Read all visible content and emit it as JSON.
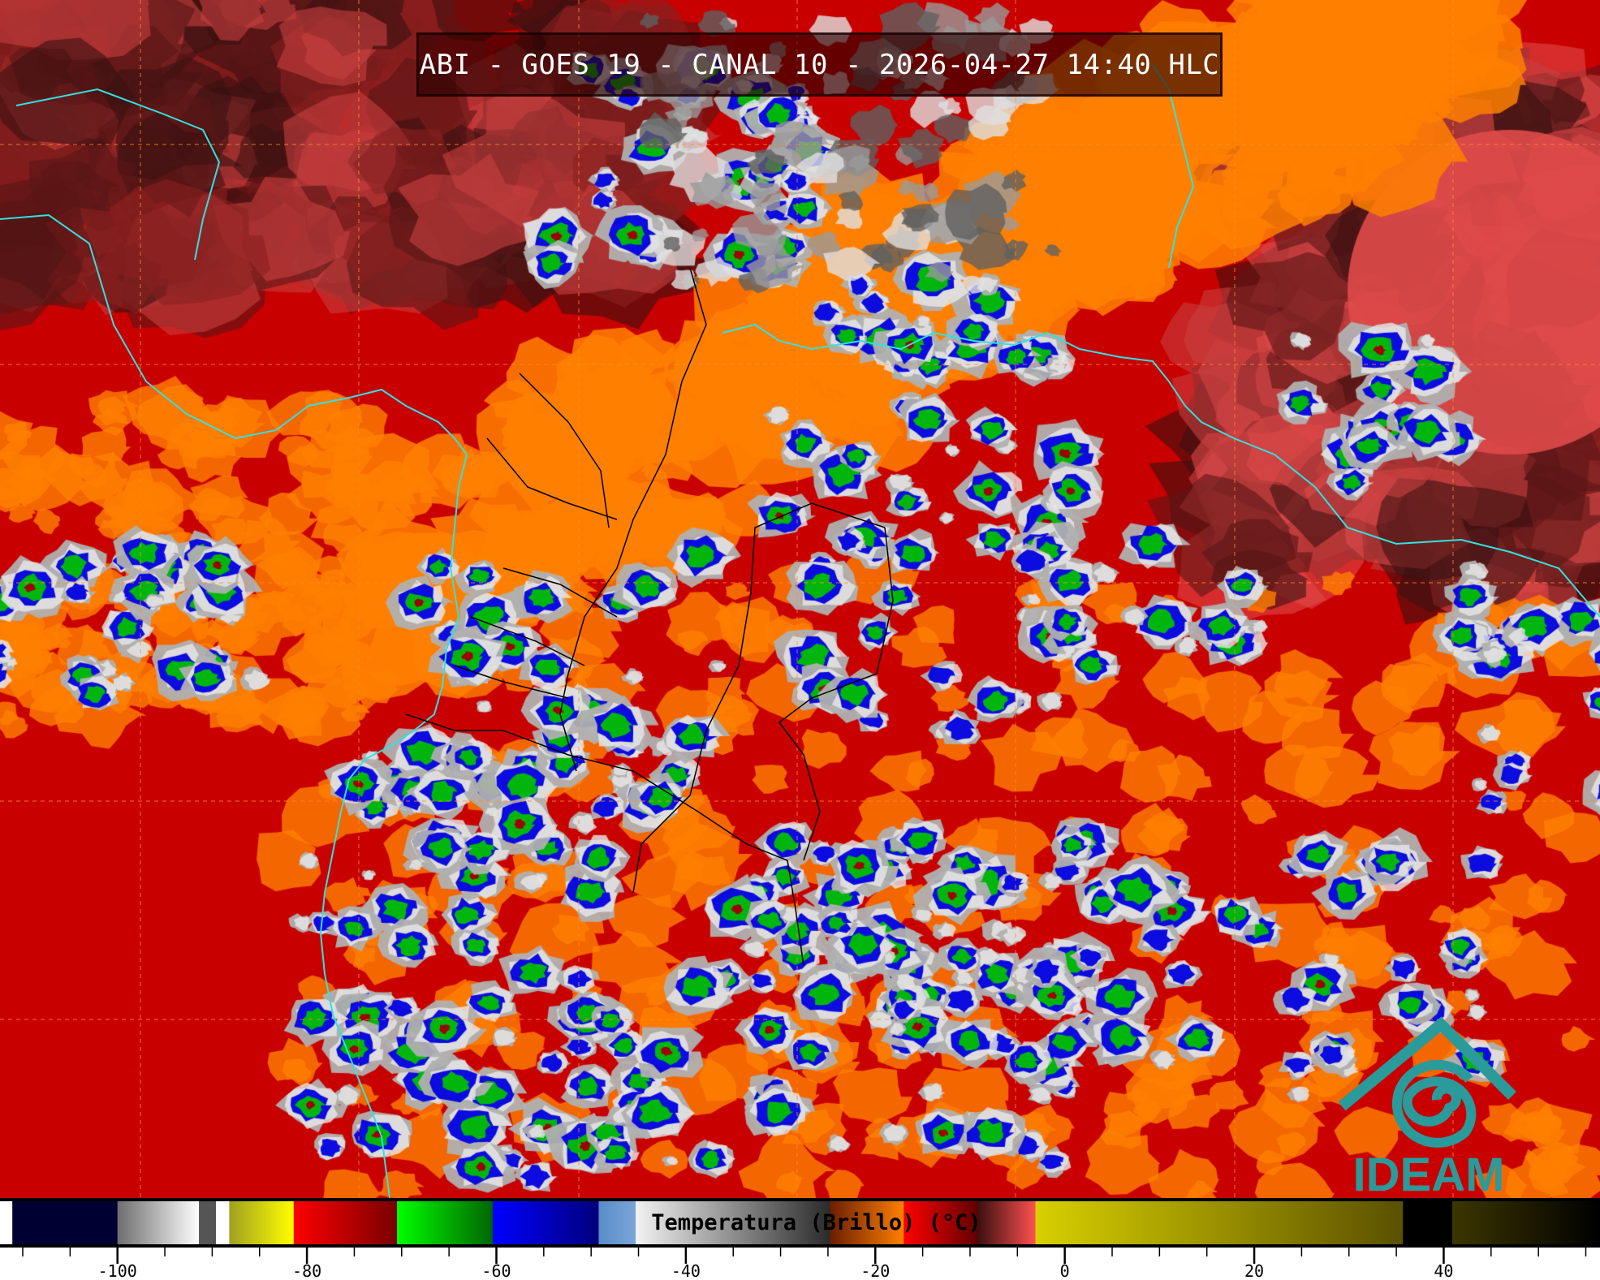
{
  "title": "ABI - GOES 19 - CANAL 10 - 2026-04-27 14:40 HLC",
  "logo_text": "IDEAM",
  "colorbar": {
    "label": "Temperatura (Brillo) (°C)",
    "range": [
      -112.4,
      56.5
    ],
    "ticks": [
      {
        "value": -100,
        "label": "-100"
      },
      {
        "value": -80,
        "label": "-80"
      },
      {
        "value": -60,
        "label": "-60"
      },
      {
        "value": -40,
        "label": "-40"
      },
      {
        "value": -20,
        "label": "-20"
      },
      {
        "value": 0,
        "label": "0"
      },
      {
        "value": 20,
        "label": "20"
      },
      {
        "value": 40,
        "label": "40"
      }
    ],
    "minor_tick_step": 5,
    "segments": [
      {
        "from": -112.4,
        "to": -111.1,
        "colors": [
          "#ffffff",
          "#ffffff"
        ]
      },
      {
        "from": -111.1,
        "to": -100,
        "colors": [
          "#000033",
          "#000033"
        ]
      },
      {
        "from": -100,
        "to": -91.4,
        "colors": [
          "#6e6e6e",
          "#ffffff"
        ]
      },
      {
        "from": -91.4,
        "to": -89.6,
        "colors": [
          "#555555",
          "#555555"
        ]
      },
      {
        "from": -89.6,
        "to": -88.2,
        "colors": [
          "#ffffff",
          "#ffffff"
        ]
      },
      {
        "from": -88.2,
        "to": -81.4,
        "colors": [
          "#a0a020",
          "#ffff00"
        ]
      },
      {
        "from": -81.4,
        "to": -70.5,
        "colors": [
          "#ff0000",
          "#780000"
        ]
      },
      {
        "from": -70.5,
        "to": -60.4,
        "colors": [
          "#00ff00",
          "#006400"
        ]
      },
      {
        "from": -60.4,
        "to": -49.2,
        "colors": [
          "#0000ff",
          "#00007a"
        ]
      },
      {
        "from": -49.2,
        "to": -45.3,
        "colors": [
          "#5a8cc8",
          "#7aa6d8"
        ]
      },
      {
        "from": -45.3,
        "to": -24.8,
        "colors": [
          "#f2f2f2",
          "#2a2a2a"
        ]
      },
      {
        "from": -24.8,
        "to": -17,
        "colors": [
          "#6a1e00",
          "#ff8000"
        ]
      },
      {
        "from": -17,
        "to": -9.2,
        "colors": [
          "#ff0000",
          "#600000"
        ]
      },
      {
        "from": -9.2,
        "to": -3.1,
        "colors": [
          "#3a1010",
          "#ff5050"
        ]
      },
      {
        "from": -3.1,
        "to": 35.7,
        "colors": [
          "#d8d000",
          "#5a5000"
        ]
      },
      {
        "from": 35.7,
        "to": 40.9,
        "colors": [
          "#000000",
          "#000000"
        ]
      },
      {
        "from": 40.9,
        "to": 56.5,
        "colors": [
          "#3c3600",
          "#000000"
        ]
      }
    ]
  },
  "colors": {
    "coastline": "#33e0e0",
    "borders": "#000000",
    "grid": "#ff8c28",
    "logo": "#2a9a9a",
    "background_sea": "#c80000",
    "anvil_orange": "#ff8000"
  }
}
